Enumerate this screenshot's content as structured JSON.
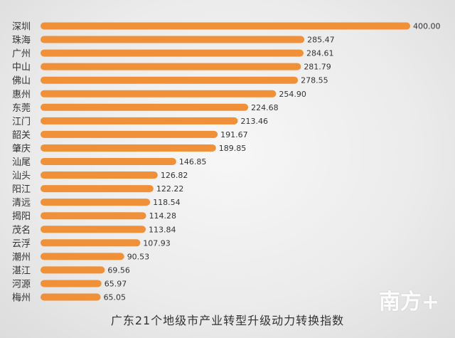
{
  "chart_data": {
    "type": "bar",
    "orientation": "horizontal",
    "title": "广东21个地级市产业转型升级动力转换指数",
    "categories": [
      "深圳",
      "珠海",
      "广州",
      "中山",
      "佛山",
      "惠州",
      "东莞",
      "江门",
      "韶关",
      "肇庆",
      "汕尾",
      "汕头",
      "阳江",
      "清远",
      "揭阳",
      "茂名",
      "云浮",
      "潮州",
      "湛江",
      "河源",
      "梅州"
    ],
    "values": [
      400.0,
      285.47,
      284.61,
      281.79,
      278.55,
      254.9,
      224.68,
      213.46,
      191.67,
      189.85,
      146.85,
      126.82,
      122.22,
      118.54,
      114.28,
      113.84,
      107.93,
      90.53,
      69.56,
      65.97,
      65.05
    ],
    "value_labels": [
      "400.00",
      "285.47",
      "284.61",
      "281.79",
      "278.55",
      "254.90",
      "224.68",
      "213.46",
      "191.67",
      "189.85",
      "146.85",
      "126.82",
      "122.22",
      "118.54",
      "114.28",
      "113.84",
      "107.93",
      "90.53",
      "69.56",
      "65.97",
      "65.05"
    ],
    "xlim": [
      0,
      400
    ],
    "grid": false,
    "bar_color": "#f0913a"
  },
  "logo": "南方+"
}
